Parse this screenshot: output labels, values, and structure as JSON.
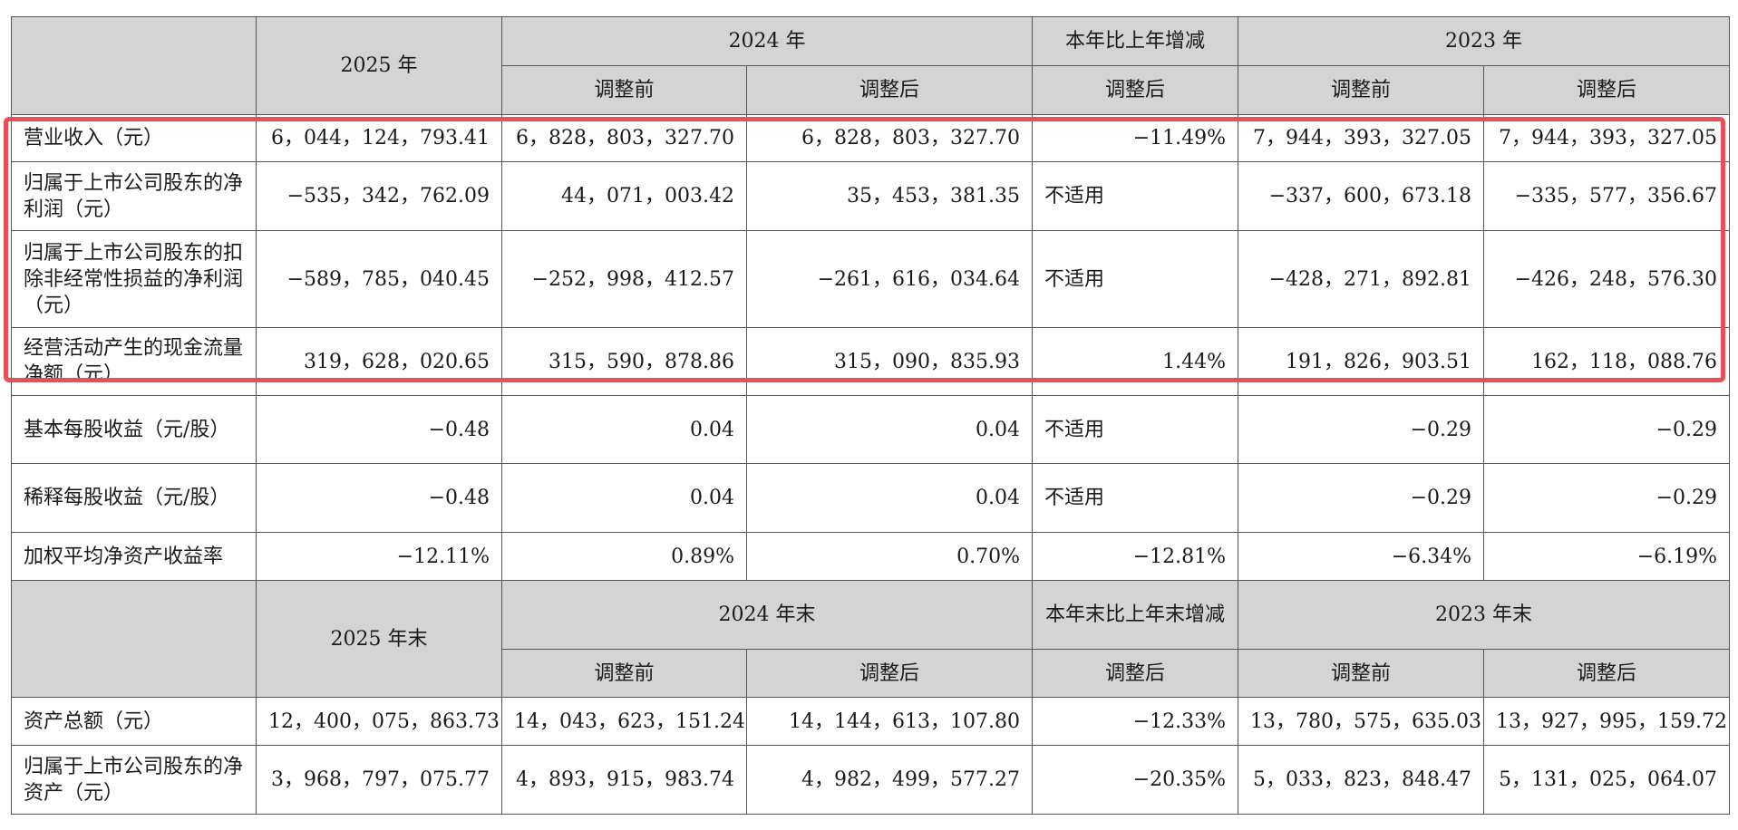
{
  "header1": {
    "col_2025": "2025 年",
    "col_2024": "2024 年",
    "col_change": "本年比上年增减",
    "col_2023": "2023 年",
    "before": "调整前",
    "after": "调整后"
  },
  "rows1": [
    {
      "label": "营业收入（元）",
      "v2025": "6，044，124，793.41",
      "v2024a": "6，828，803，327.70",
      "v2024b": "6，828，803，327.70",
      "chg": "−11.49%",
      "v2023a": "7，944，393，327.05",
      "v2023b": "7，944，393，327.05"
    },
    {
      "label": "归属于上市公司股东的净利润（元）",
      "v2025": "−535，342，762.09",
      "v2024a": "44，071，003.42",
      "v2024b": "35，453，381.35",
      "chg": "不适用",
      "v2023a": "−337，600，673.18",
      "v2023b": "−335，577，356.67"
    },
    {
      "label": "归属于上市公司股东的扣除非经常性损益的净利润（元）",
      "v2025": "−589，785，040.45",
      "v2024a": "−252，998，412.57",
      "v2024b": "−261，616，034.64",
      "chg": "不适用",
      "v2023a": "−428，271，892.81",
      "v2023b": "−426，248，576.30"
    },
    {
      "label": "经营活动产生的现金流量净额（元）",
      "v2025": "319，628，020.65",
      "v2024a": "315，590，878.86",
      "v2024b": "315，090，835.93",
      "chg": "1.44%",
      "v2023a": "191，826，903.51",
      "v2023b": "162，118，088.76"
    },
    {
      "label": "基本每股收益（元/股）",
      "v2025": "−0.48",
      "v2024a": "0.04",
      "v2024b": "0.04",
      "chg": "不适用",
      "v2023a": "−0.29",
      "v2023b": "−0.29"
    },
    {
      "label": "稀释每股收益（元/股）",
      "v2025": "−0.48",
      "v2024a": "0.04",
      "v2024b": "0.04",
      "chg": "不适用",
      "v2023a": "−0.29",
      "v2023b": "−0.29"
    },
    {
      "label": "加权平均净资产收益率",
      "v2025": "−12.11%",
      "v2024a": "0.89%",
      "v2024b": "0.70%",
      "chg": "−12.81%",
      "v2023a": "−6.34%",
      "v2023b": "−6.19%"
    }
  ],
  "header2": {
    "col_2025": "2025 年末",
    "col_2024": "2024 年末",
    "col_change": "本年末比上年末增减",
    "col_2023": "2023 年末",
    "before": "调整前",
    "after": "调整后"
  },
  "rows2": [
    {
      "label": "资产总额（元）",
      "v2025": "12，400，075，863.73",
      "v2024a": "14，043，623，151.24",
      "v2024b": "14，144，613，107.80",
      "chg": "−12.33%",
      "v2023a": "13，780，575，635.03",
      "v2023b": "13，927，995，159.72"
    },
    {
      "label": "归属于上市公司股东的净资产（元）",
      "v2025": "3，968，797，075.77",
      "v2024a": "4，893，915，983.74",
      "v2024b": "4，982，499，577.27",
      "chg": "−20.35%",
      "v2023a": "5，033，823，848.47",
      "v2023b": "5，131，025，064.07"
    }
  ],
  "colors": {
    "header_bg": "#d4d4d4",
    "highlight_border": "#ef4d55",
    "grid_line": "#555555"
  }
}
